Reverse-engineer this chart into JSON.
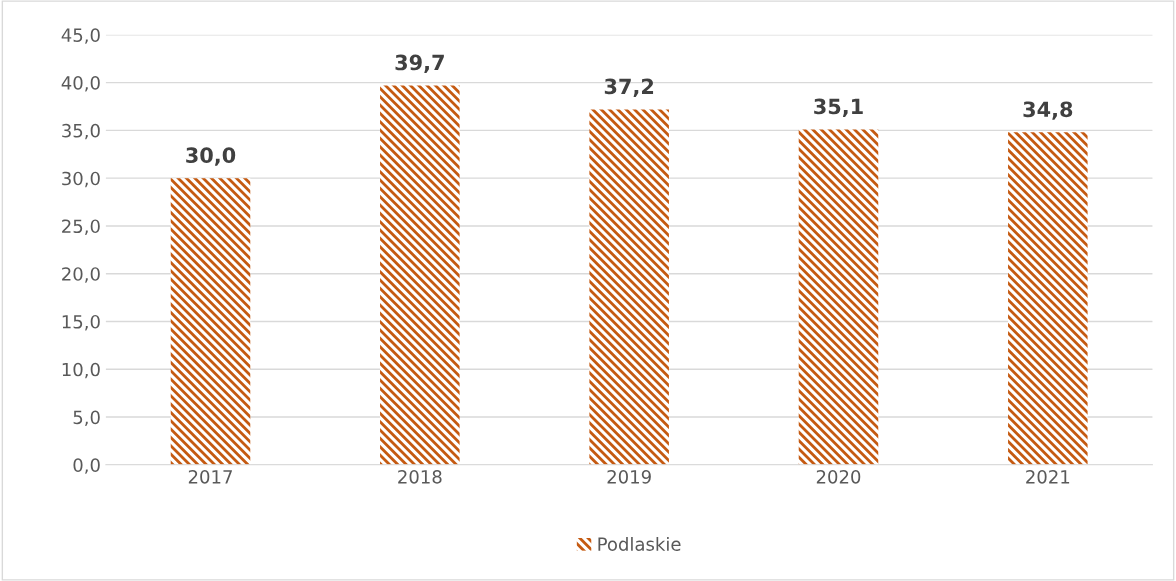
{
  "chart_data": {
    "type": "bar",
    "categories": [
      "2017",
      "2018",
      "2019",
      "2020",
      "2021"
    ],
    "series": [
      {
        "name": "Podlaskie",
        "color": "#c55a11",
        "values": [
          30.0,
          39.7,
          37.2,
          35.1,
          34.8
        ]
      }
    ],
    "value_labels": [
      "30,0",
      "39,7",
      "37,2",
      "35,1",
      "34,8"
    ],
    "ylim": [
      0,
      45
    ],
    "yticks": [
      {
        "value": 0,
        "label": "0,0"
      },
      {
        "value": 5,
        "label": "5,0"
      },
      {
        "value": 10,
        "label": "10,0"
      },
      {
        "value": 15,
        "label": "15,0"
      },
      {
        "value": 20,
        "label": "20,0"
      },
      {
        "value": 25,
        "label": "25,0"
      },
      {
        "value": 30,
        "label": "30,0"
      },
      {
        "value": 35,
        "label": "35,0"
      },
      {
        "value": 40,
        "label": "40,0"
      },
      {
        "value": 45,
        "label": "45,0"
      }
    ],
    "grid": "y",
    "legend": "bottom"
  }
}
